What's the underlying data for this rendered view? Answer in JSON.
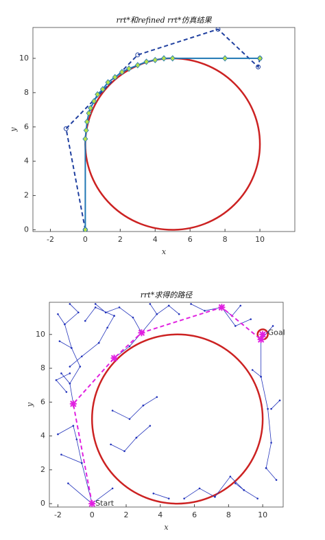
{
  "chart_data": [
    {
      "type": "line",
      "title": "rrt*和refined rrt*仿真结果",
      "x_label": "x",
      "y_label": "y",
      "xlim": [
        -3,
        12
      ],
      "ylim": [
        -0.1,
        11.8
      ],
      "xticks": [
        -2,
        0,
        2,
        4,
        6,
        8,
        10
      ],
      "yticks": [
        0,
        2,
        4,
        6,
        8,
        10
      ],
      "circles": [
        {
          "center": [
            5,
            5
          ],
          "radius": 5,
          "color": "#cc2222"
        }
      ],
      "series": [
        {
          "color": "#1f3f9f",
          "dash": true,
          "marker": "circle",
          "marker_fill": "none",
          "x": [
            0,
            -1.1,
            3,
            7.6,
            9.9,
            10
          ],
          "y": [
            0,
            5.9,
            10.2,
            11.7,
            9.5,
            10
          ]
        },
        {
          "color": "#1f77b4",
          "dash": false,
          "marker": "diamond",
          "marker_fill": "#b7e04a",
          "x": [
            0,
            0,
            0.05,
            0.1,
            0.2,
            0.3,
            0.5,
            0.7,
            1,
            1.3,
            1.7,
            2.1,
            2.5,
            3,
            3.5,
            4,
            4.5,
            5,
            8,
            10
          ],
          "y": [
            0,
            5.3,
            5.8,
            6.3,
            6.8,
            7.1,
            7.5,
            7.9,
            8.2,
            8.6,
            8.9,
            9.2,
            9.4,
            9.6,
            9.8,
            9.9,
            10,
            10,
            10,
            10
          ]
        }
      ]
    },
    {
      "type": "line",
      "title": "rrt*求得的路径",
      "x_label": "x",
      "y_label": "y",
      "xlim": [
        -2.5,
        11.2
      ],
      "ylim": [
        -0.2,
        11.9
      ],
      "xticks": [
        -2,
        0,
        2,
        4,
        6,
        8,
        10
      ],
      "yticks": [
        0,
        2,
        4,
        6,
        8,
        10
      ],
      "circles": [
        {
          "center": [
            5,
            5
          ],
          "radius": 5,
          "color": "#cc2222"
        },
        {
          "center": [
            10,
            10
          ],
          "radius": 0.3,
          "color": "#cc2222"
        }
      ],
      "annotations": [
        {
          "text": "Start",
          "x": 0.2,
          "y": 0
        },
        {
          "text": "Goal",
          "x": 10.3,
          "y": 10.1
        }
      ],
      "series": [
        {
          "color": "#2233bb",
          "dash": false,
          "marker": "dot",
          "marker_fill": "#2233bb",
          "x": [
            0,
            -1.4,
            null,
            0,
            1.2,
            null,
            0,
            -0.6,
            -1.8,
            null,
            -0.6,
            -0.9,
            -1.1,
            null,
            -1.1,
            -2,
            null,
            -1.1,
            -1.3,
            -1.8,
            null,
            -1.3,
            -0.7,
            -1.2,
            -1.9,
            null,
            -1.2,
            -1.6,
            -2,
            null,
            -1.6,
            -0.8,
            -1.3,
            null,
            -1.3,
            -2.1,
            -1.5,
            null,
            -1.3,
            -0.6,
            0.4,
            null,
            0.4,
            0.9,
            1.3,
            null,
            1.3,
            0.2,
            -0.4,
            null,
            1.3,
            2.2,
            2.9,
            null,
            2.9,
            2.4,
            1.6,
            0.8,
            null,
            0.8,
            0.2,
            null,
            2.9,
            3.8,
            4.5,
            null,
            4.5,
            5.1,
            null,
            3.8,
            3.4,
            null,
            7.6,
            6.6,
            5.8,
            null,
            7.6,
            8.2,
            8.7,
            null,
            7.6,
            8.4,
            9.3,
            null,
            9.9,
            10.6,
            null,
            9.9,
            9.9,
            10.3,
            10.5,
            10.2,
            null,
            10.2,
            10.8,
            null,
            10.5,
            11,
            null,
            9.9,
            9.4,
            null,
            8.4,
            8.9,
            9.7,
            null,
            8.9,
            8.1,
            7.2,
            null,
            7.2,
            6.3,
            5.4,
            null,
            4.5,
            3.6,
            null,
            1.1,
            1.9,
            2.6,
            null,
            2.6,
            3.4,
            null,
            1.2,
            2.2,
            3,
            null,
            3,
            3.8
          ],
          "y": [
            0,
            1.2,
            null,
            0,
            0.9,
            null,
            0,
            2.4,
            2.9,
            null,
            2.4,
            3.8,
            4.6,
            null,
            4.6,
            4.1,
            null,
            5.9,
            7.1,
            7.7,
            null,
            7.1,
            8.1,
            9.2,
            9.6,
            null,
            9.2,
            10.6,
            11.2,
            null,
            10.6,
            11.3,
            11.8,
            null,
            7.7,
            7.3,
            6.6,
            null,
            8.1,
            8.7,
            9.5,
            null,
            9.5,
            10.4,
            11.1,
            null,
            11.1,
            11.6,
            10.8,
            null,
            8.6,
            9.3,
            10.1,
            null,
            10.1,
            11,
            11.6,
            11.3,
            null,
            11.3,
            11.8,
            null,
            10.1,
            11.2,
            11.7,
            null,
            11.7,
            11.2,
            null,
            11.2,
            11.8,
            null,
            11.6,
            11.4,
            11.8,
            null,
            11.6,
            11.1,
            11.7,
            null,
            11.6,
            10.5,
            10.9,
            null,
            9.7,
            10.5,
            null,
            9.7,
            7.5,
            5.6,
            3.6,
            2.1,
            null,
            2.1,
            1.4,
            null,
            5.6,
            6.1,
            null,
            7.5,
            7.9,
            null,
            1.2,
            0.8,
            0.3,
            null,
            0.8,
            1.6,
            0.4,
            null,
            0.4,
            0.9,
            0.3,
            null,
            0.3,
            0.6,
            null,
            3.5,
            3.1,
            3.9,
            null,
            3.9,
            4.6,
            null,
            5.5,
            5.0,
            5.8,
            null,
            5.8,
            6.3
          ]
        },
        {
          "color": "#e020e0",
          "dash": true,
          "marker": "star",
          "marker_fill": "none",
          "x": [
            0,
            -1.1,
            1.3,
            2.9,
            7.6,
            9.9,
            10
          ],
          "y": [
            0,
            5.9,
            8.6,
            10.1,
            11.6,
            9.7,
            10
          ]
        }
      ]
    }
  ]
}
